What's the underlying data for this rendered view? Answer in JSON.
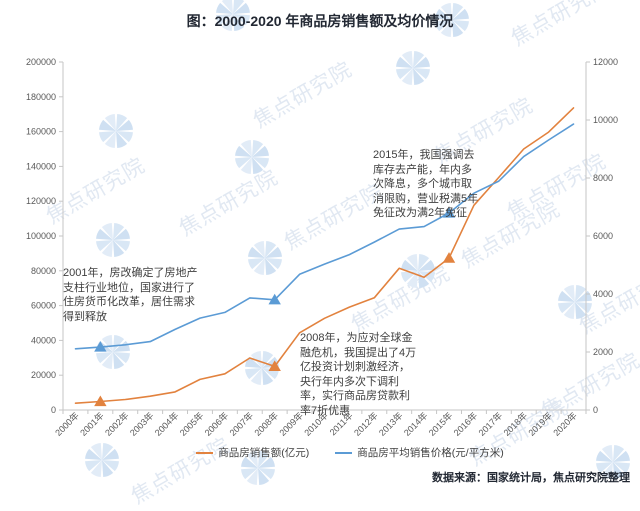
{
  "title": "图：2000-2020 年商品房销售额及均价情况",
  "source": "数据来源：国家统计局，焦点研究院整理",
  "watermark": {
    "text": "焦点研究院",
    "logo": "pinwheel-logo"
  },
  "colors": {
    "sales_line": "#E2823E",
    "price_line": "#5B9BD5",
    "axis": "#C6C6C6",
    "tick_label": "#595959",
    "title_text": "#222833",
    "annotation_text": "#3F3F3F",
    "watermark_blue": "#B9D0EA"
  },
  "annotations": [
    {
      "year": "2001",
      "text": "2001年，房改确定了房地产支柱行业地位，国家进行了住房货币化改革，居住需求得到释放"
    },
    {
      "year": "2008",
      "text": "2008年，为应对全球金融危机，我国提出了4万亿投资计划刺激经济，央行年内多次下调利率，实行商品房贷款利率7折优惠"
    },
    {
      "year": "2015",
      "text": "2015年，我国强调去库存去产能，年内多次降息，多个城市取消限购，营业税满5年免征改为满2年免征"
    }
  ],
  "chart_data": {
    "type": "line",
    "categories": [
      "2000年",
      "2001年",
      "2002年",
      "2003年",
      "2004年",
      "2005年",
      "2006年",
      "2007年",
      "2008年",
      "2009年",
      "2010年",
      "2011年",
      "2012年",
      "2013年",
      "2014年",
      "2015年",
      "2016年",
      "2017年",
      "2018年",
      "2019年",
      "2020年"
    ],
    "series": [
      {
        "name": "商品房销售额(亿元)",
        "axis": "left",
        "color": "#E2823E",
        "values": [
          3935,
          4863,
          6032,
          7956,
          10376,
          17576,
          20826,
          29889,
          25068,
          44355,
          52721,
          59119,
          64456,
          81428,
          76292,
          87281,
          117627,
          133701,
          149973,
          159725,
          173613
        ]
      },
      {
        "name": "商品房平均销售价格(元/平方米)",
        "axis": "right",
        "color": "#5B9BD5",
        "values": [
          2112,
          2170,
          2250,
          2359,
          2778,
          3168,
          3367,
          3864,
          3800,
          4681,
          5032,
          5357,
          5791,
          6237,
          6323,
          6793,
          7476,
          7892,
          8737,
          9310,
          9860
        ]
      }
    ],
    "y_left": {
      "min": 0,
      "max": 200000,
      "step": 20000
    },
    "y_right": {
      "min": 0,
      "max": 12000,
      "step": 2000
    },
    "marker_years": [
      "2001年",
      "2008年",
      "2015年"
    ],
    "legend_position": "bottom",
    "grid": false
  }
}
